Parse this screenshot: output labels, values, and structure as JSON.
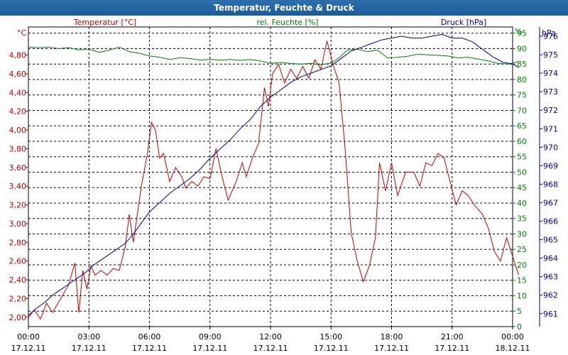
{
  "chart_data": {
    "type": "line",
    "title": "Temperatur, Feuchte & Druck",
    "x_ticks": [
      {
        "time": "00:00",
        "date": "17.12.11"
      },
      {
        "time": "03:00",
        "date": "17.12.11"
      },
      {
        "time": "06:00",
        "date": "17.12.11"
      },
      {
        "time": "09:00",
        "date": "17.12.11"
      },
      {
        "time": "12:00",
        "date": "17.12.11"
      },
      {
        "time": "15:00",
        "date": "17.12.11"
      },
      {
        "time": "18:00",
        "date": "17.12.11"
      },
      {
        "time": "21:00",
        "date": "17.12.11"
      },
      {
        "time": "00:00",
        "date": "18.12.11"
      }
    ],
    "x_range_hours": [
      0,
      24
    ],
    "axes": {
      "temperature": {
        "label": "Temperatur [°C]",
        "unit": "°C",
        "range": [
          1.9,
          5.1
        ],
        "ticks": [
          "2,00",
          "2,20",
          "2,40",
          "2,60",
          "2,80",
          "3,00",
          "3,20",
          "3,40",
          "3,60",
          "3,80",
          "4,00",
          "4,20",
          "4,40",
          "4,60",
          "4,80"
        ],
        "color": "#c00000"
      },
      "humidity": {
        "label": "rel. Feuchte [%]",
        "unit": "%",
        "range": [
          0,
          97
        ],
        "ticks": [
          "0",
          "5",
          "10",
          "15",
          "20",
          "25",
          "30",
          "35",
          "40",
          "45",
          "50",
          "55",
          "60",
          "65",
          "70",
          "75",
          "80",
          "85",
          "90",
          "95"
        ],
        "color": "#008000"
      },
      "pressure": {
        "label": "Druck [hPa]",
        "unit": "hPa",
        "range": [
          960.3,
          976.5
        ],
        "ticks": [
          "961",
          "962",
          "963",
          "964",
          "965",
          "966",
          "967",
          "968",
          "969",
          "970",
          "971",
          "972",
          "973",
          "974",
          "975",
          "976"
        ],
        "color": "#00008b"
      }
    },
    "series": [
      {
        "name": "Temperatur",
        "axis": "temperature",
        "color": "#c00000",
        "points": [
          [
            0,
            2.0
          ],
          [
            0.3,
            2.08
          ],
          [
            0.6,
            1.98
          ],
          [
            0.9,
            2.15
          ],
          [
            1.2,
            2.05
          ],
          [
            1.6,
            2.2
          ],
          [
            2.0,
            2.35
          ],
          [
            2.3,
            2.58
          ],
          [
            2.5,
            2.05
          ],
          [
            2.7,
            2.5
          ],
          [
            2.9,
            2.3
          ],
          [
            3.1,
            2.55
          ],
          [
            3.3,
            2.45
          ],
          [
            3.6,
            2.5
          ],
          [
            3.9,
            2.45
          ],
          [
            4.2,
            2.52
          ],
          [
            4.5,
            2.5
          ],
          [
            4.8,
            2.75
          ],
          [
            5.0,
            3.1
          ],
          [
            5.2,
            2.8
          ],
          [
            5.4,
            3.1
          ],
          [
            5.6,
            3.4
          ],
          [
            5.9,
            3.75
          ],
          [
            6.1,
            4.08
          ],
          [
            6.3,
            4.0
          ],
          [
            6.5,
            3.7
          ],
          [
            6.7,
            3.75
          ],
          [
            7.0,
            3.45
          ],
          [
            7.3,
            3.6
          ],
          [
            7.6,
            3.5
          ],
          [
            7.8,
            3.38
          ],
          [
            8.1,
            3.45
          ],
          [
            8.4,
            3.4
          ],
          [
            8.7,
            3.5
          ],
          [
            9.0,
            3.48
          ],
          [
            9.3,
            3.8
          ],
          [
            9.6,
            3.5
          ],
          [
            9.9,
            3.25
          ],
          [
            10.3,
            3.45
          ],
          [
            10.6,
            3.65
          ],
          [
            10.8,
            3.5
          ],
          [
            11.1,
            3.7
          ],
          [
            11.4,
            3.85
          ],
          [
            11.7,
            4.45
          ],
          [
            11.9,
            4.25
          ],
          [
            12.1,
            4.6
          ],
          [
            12.4,
            4.7
          ],
          [
            12.7,
            4.5
          ],
          [
            13.0,
            4.65
          ],
          [
            13.3,
            4.55
          ],
          [
            13.6,
            4.68
          ],
          [
            13.9,
            4.55
          ],
          [
            14.2,
            4.75
          ],
          [
            14.5,
            4.65
          ],
          [
            14.8,
            4.95
          ],
          [
            15.1,
            4.7
          ],
          [
            15.4,
            4.5
          ],
          [
            15.7,
            3.8
          ],
          [
            16.0,
            2.9
          ],
          [
            16.3,
            2.6
          ],
          [
            16.6,
            2.38
          ],
          [
            16.9,
            2.55
          ],
          [
            17.2,
            2.85
          ],
          [
            17.4,
            3.65
          ],
          [
            17.7,
            3.35
          ],
          [
            18.0,
            3.65
          ],
          [
            18.3,
            3.3
          ],
          [
            18.7,
            3.55
          ],
          [
            19.1,
            3.55
          ],
          [
            19.4,
            3.4
          ],
          [
            19.7,
            3.65
          ],
          [
            20.0,
            3.62
          ],
          [
            20.3,
            3.75
          ],
          [
            20.6,
            3.7
          ],
          [
            20.9,
            3.45
          ],
          [
            21.2,
            3.2
          ],
          [
            21.5,
            3.35
          ],
          [
            21.8,
            3.3
          ],
          [
            22.1,
            3.2
          ],
          [
            22.5,
            3.1
          ],
          [
            22.8,
            2.95
          ],
          [
            23.1,
            2.7
          ],
          [
            23.4,
            2.6
          ],
          [
            23.7,
            2.85
          ],
          [
            24.0,
            2.65
          ],
          [
            24.3,
            2.45
          ]
        ]
      },
      {
        "name": "rel. Feuchte",
        "axis": "humidity",
        "color": "#008000",
        "points": [
          [
            0,
            90.5
          ],
          [
            0.5,
            90.3
          ],
          [
            1.0,
            90.5
          ],
          [
            1.5,
            90.0
          ],
          [
            2.0,
            90.3
          ],
          [
            2.5,
            89.6
          ],
          [
            3.0,
            89.8
          ],
          [
            3.5,
            88.8
          ],
          [
            4.0,
            89.5
          ],
          [
            4.5,
            90.5
          ],
          [
            5.0,
            89.0
          ],
          [
            5.5,
            88.5
          ],
          [
            6.0,
            87.6
          ],
          [
            6.5,
            87.2
          ],
          [
            7.0,
            86.5
          ],
          [
            7.5,
            87.0
          ],
          [
            8.0,
            86.8
          ],
          [
            8.5,
            86.3
          ],
          [
            9.0,
            86.5
          ],
          [
            9.5,
            86.3
          ],
          [
            10.0,
            86.5
          ],
          [
            10.5,
            86.2
          ],
          [
            11.0,
            86.5
          ],
          [
            11.5,
            86.0
          ],
          [
            12.0,
            85.2
          ],
          [
            12.5,
            85.5
          ],
          [
            13.0,
            85.2
          ],
          [
            13.5,
            85.0
          ],
          [
            14.0,
            85.2
          ],
          [
            14.5,
            84.8
          ],
          [
            15.0,
            85.3
          ],
          [
            15.4,
            87.0
          ],
          [
            15.8,
            89.5
          ],
          [
            16.3,
            89.8
          ],
          [
            16.8,
            89.0
          ],
          [
            17.3,
            89.5
          ],
          [
            17.8,
            87.0
          ],
          [
            18.3,
            87.2
          ],
          [
            18.8,
            87.5
          ],
          [
            19.3,
            88.2
          ],
          [
            19.8,
            88.0
          ],
          [
            20.3,
            87.8
          ],
          [
            20.8,
            87.6
          ],
          [
            21.3,
            87.0
          ],
          [
            21.8,
            87.2
          ],
          [
            22.3,
            86.6
          ],
          [
            22.8,
            86.0
          ],
          [
            23.3,
            85.2
          ],
          [
            23.8,
            85.0
          ],
          [
            24.3,
            85.8
          ]
        ]
      },
      {
        "name": "Druck",
        "axis": "pressure",
        "color": "#00008b",
        "points": [
          [
            0,
            960.9
          ],
          [
            0.4,
            961.3
          ],
          [
            0.8,
            961.6
          ],
          [
            1.2,
            962.0
          ],
          [
            1.6,
            962.3
          ],
          [
            2.0,
            962.6
          ],
          [
            2.4,
            962.9
          ],
          [
            2.8,
            963.2
          ],
          [
            3.2,
            963.6
          ],
          [
            3.6,
            963.9
          ],
          [
            4.0,
            964.2
          ],
          [
            4.4,
            964.5
          ],
          [
            4.8,
            964.8
          ],
          [
            5.2,
            965.3
          ],
          [
            5.6,
            965.9
          ],
          [
            6.0,
            966.5
          ],
          [
            6.5,
            967.0
          ],
          [
            7.0,
            967.5
          ],
          [
            7.5,
            967.9
          ],
          [
            8.0,
            968.3
          ],
          [
            8.5,
            968.8
          ],
          [
            9.0,
            969.4
          ],
          [
            9.5,
            969.9
          ],
          [
            10.0,
            970.4
          ],
          [
            10.5,
            971.0
          ],
          [
            11.0,
            971.5
          ],
          [
            11.5,
            972.2
          ],
          [
            12.0,
            972.7
          ],
          [
            12.5,
            973.1
          ],
          [
            13.0,
            973.5
          ],
          [
            13.5,
            973.8
          ],
          [
            14.0,
            974.0
          ],
          [
            14.5,
            974.2
          ],
          [
            15.0,
            974.4
          ],
          [
            15.5,
            974.8
          ],
          [
            16.0,
            975.2
          ],
          [
            16.5,
            975.4
          ],
          [
            17.0,
            975.6
          ],
          [
            17.5,
            975.8
          ],
          [
            18.0,
            975.9
          ],
          [
            18.5,
            976.0
          ],
          [
            19.0,
            975.9
          ],
          [
            19.5,
            975.9
          ],
          [
            20.0,
            976.0
          ],
          [
            20.5,
            976.1
          ],
          [
            21.0,
            975.9
          ],
          [
            21.5,
            975.9
          ],
          [
            22.0,
            975.7
          ],
          [
            22.5,
            975.3
          ],
          [
            23.0,
            974.9
          ],
          [
            23.5,
            974.6
          ],
          [
            24.0,
            974.5
          ],
          [
            24.3,
            974.3
          ]
        ]
      }
    ]
  }
}
